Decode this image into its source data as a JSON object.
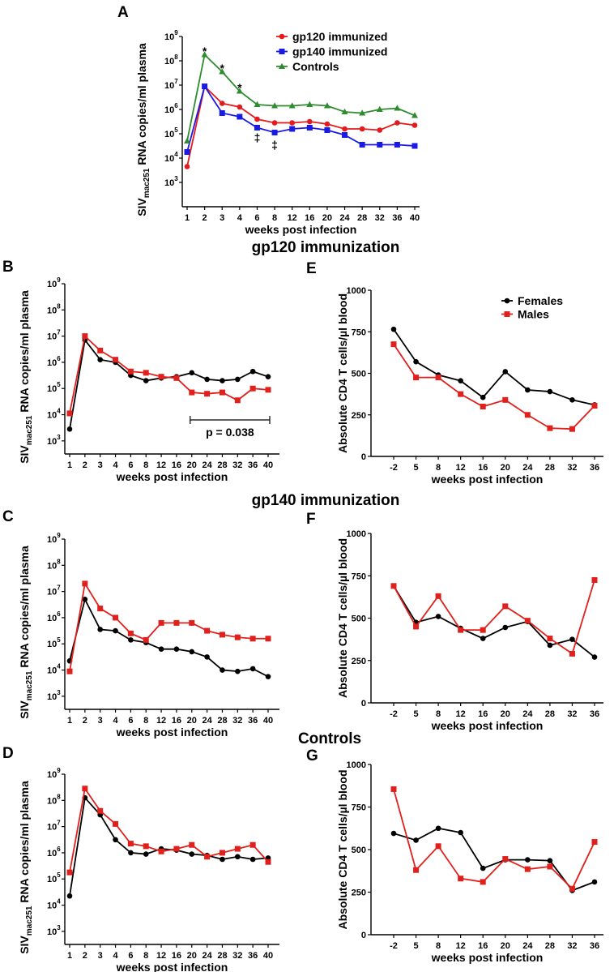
{
  "section_titles": {
    "gp120": "gp120 immunization",
    "gp140": "gp140 immunization",
    "controls": "Controls"
  },
  "y_label_viral": {
    "prefix": "SIV",
    "subscript": "mac251",
    "suffix": " RNA copies/ml plasma"
  },
  "y_label_cd4": "Absolute CD4 T cells/µl blood",
  "x_label": "weeks post infection",
  "colors": {
    "red": "#e41a1c",
    "blue": "#1a1ae6",
    "green": "#2e8b2e",
    "black": "#000000",
    "male_red": "#e0201c"
  },
  "chart_data": [
    {
      "id": "A",
      "type": "line",
      "scale": "log10",
      "x_categories": [
        "1",
        "2",
        "3",
        "4",
        "6",
        "8",
        "12",
        "16",
        "20",
        "24",
        "28",
        "32",
        "36",
        "40"
      ],
      "y_ticks": [
        3,
        4,
        5,
        6,
        7,
        8,
        9
      ],
      "ylim": [
        2,
        9
      ],
      "legend": {
        "position": "top-right",
        "inside": true
      },
      "series": [
        {
          "name": "gp120 immunized",
          "color": "#e41a1c",
          "marker": "circle",
          "values": [
            3.65,
            6.95,
            6.25,
            6.1,
            5.6,
            5.45,
            5.45,
            5.5,
            5.4,
            5.2,
            5.2,
            5.15,
            5.45,
            5.35
          ]
        },
        {
          "name": "gp140 immunized",
          "color": "#1a1ae6",
          "marker": "square",
          "values": [
            4.25,
            6.95,
            5.85,
            5.7,
            5.25,
            5.05,
            5.2,
            5.25,
            5.15,
            4.95,
            4.55,
            4.55,
            4.55,
            4.5
          ]
        },
        {
          "name": "Controls",
          "color": "#2e8b2e",
          "marker": "triangle",
          "values": [
            4.7,
            8.25,
            7.55,
            6.75,
            6.2,
            6.15,
            6.15,
            6.2,
            6.15,
            5.9,
            5.85,
            6.0,
            6.05,
            5.75
          ]
        }
      ],
      "annotations": [
        {
          "text": "*",
          "x_index": 1,
          "y": 8.4
        },
        {
          "text": "*",
          "x_index": 2,
          "y": 7.7
        },
        {
          "text": "*",
          "x_index": 3,
          "y": 6.9
        },
        {
          "text": "‡",
          "x_index": 4,
          "y": 4.85
        },
        {
          "text": "‡",
          "x_index": 5,
          "y": 4.55
        }
      ]
    },
    {
      "id": "B",
      "type": "line",
      "scale": "log10",
      "x_categories": [
        "1",
        "2",
        "3",
        "4",
        "6",
        "8",
        "12",
        "16",
        "20",
        "24",
        "28",
        "32",
        "36",
        "40"
      ],
      "y_ticks": [
        3,
        4,
        5,
        6,
        7,
        8,
        9
      ],
      "ylim": [
        2.5,
        9
      ],
      "series": [
        {
          "name": "Females",
          "color": "#000000",
          "marker": "circle",
          "values": [
            3.45,
            6.85,
            6.1,
            6.0,
            5.5,
            5.3,
            5.4,
            5.45,
            5.6,
            5.35,
            5.3,
            5.35,
            5.65,
            5.45
          ]
        },
        {
          "name": "Males",
          "color": "#e0201c",
          "marker": "square",
          "values": [
            4.05,
            7.0,
            6.45,
            6.1,
            5.65,
            5.6,
            5.45,
            5.4,
            4.85,
            4.8,
            4.85,
            4.55,
            5.0,
            4.95
          ]
        }
      ],
      "bracket": {
        "from_index": 8,
        "to_index": 13,
        "y": 3.8,
        "label": "p = 0.038"
      }
    },
    {
      "id": "C",
      "type": "line",
      "scale": "log10",
      "x_categories": [
        "1",
        "2",
        "3",
        "4",
        "6",
        "8",
        "12",
        "16",
        "20",
        "24",
        "28",
        "32",
        "36",
        "40"
      ],
      "y_ticks": [
        3,
        4,
        5,
        6,
        7,
        8,
        9
      ],
      "ylim": [
        2.5,
        9
      ],
      "series": [
        {
          "name": "Females",
          "color": "#000000",
          "marker": "circle",
          "values": [
            4.35,
            6.7,
            5.55,
            5.5,
            5.15,
            5.05,
            4.8,
            4.8,
            4.7,
            4.5,
            4.0,
            3.95,
            4.05,
            3.75
          ]
        },
        {
          "name": "Males",
          "color": "#e0201c",
          "marker": "square",
          "values": [
            3.95,
            7.3,
            6.35,
            6.0,
            5.4,
            5.15,
            5.8,
            5.8,
            5.8,
            5.5,
            5.35,
            5.25,
            5.2,
            5.2
          ]
        }
      ]
    },
    {
      "id": "D",
      "type": "line",
      "scale": "log10",
      "x_categories": [
        "1",
        "2",
        "3",
        "4",
        "6",
        "8",
        "12",
        "16",
        "20",
        "24",
        "28",
        "32",
        "36",
        "40"
      ],
      "y_ticks": [
        3,
        4,
        5,
        6,
        7,
        8,
        9
      ],
      "ylim": [
        2.5,
        9
      ],
      "series": [
        {
          "name": "Females",
          "color": "#000000",
          "marker": "circle",
          "values": [
            4.35,
            8.1,
            7.45,
            6.5,
            6.0,
            5.95,
            6.15,
            6.1,
            5.95,
            5.9,
            5.75,
            5.85,
            5.75,
            5.8
          ]
        },
        {
          "name": "Males",
          "color": "#e0201c",
          "marker": "square",
          "values": [
            5.25,
            8.45,
            7.6,
            7.1,
            6.35,
            6.25,
            6.05,
            6.15,
            6.3,
            5.85,
            6.0,
            6.15,
            6.3,
            5.65
          ]
        }
      ]
    },
    {
      "id": "E",
      "type": "line",
      "scale": "linear",
      "x_categories": [
        "-2",
        "5",
        "8",
        "12",
        "16",
        "20",
        "24",
        "28",
        "32",
        "36"
      ],
      "y_ticks": [
        0,
        250,
        500,
        750,
        1000
      ],
      "ylim": [
        0,
        1000
      ],
      "legend": {
        "position": "top-right",
        "inside": true
      },
      "series": [
        {
          "name": "Females",
          "color": "#000000",
          "marker": "circle",
          "values": [
            765,
            570,
            490,
            455,
            355,
            510,
            400,
            390,
            340,
            310
          ]
        },
        {
          "name": "Males",
          "color": "#e0201c",
          "marker": "square",
          "values": [
            675,
            475,
            475,
            375,
            300,
            340,
            250,
            170,
            165,
            305
          ]
        }
      ]
    },
    {
      "id": "F",
      "type": "line",
      "scale": "linear",
      "x_categories": [
        "-2",
        "5",
        "8",
        "12",
        "16",
        "20",
        "24",
        "28",
        "32",
        "36"
      ],
      "y_ticks": [
        0,
        250,
        500,
        750,
        1000
      ],
      "ylim": [
        0,
        1000
      ],
      "series": [
        {
          "name": "Females",
          "color": "#000000",
          "marker": "circle",
          "values": [
            690,
            475,
            510,
            440,
            380,
            445,
            480,
            340,
            375,
            270
          ]
        },
        {
          "name": "Males",
          "color": "#e0201c",
          "marker": "square",
          "values": [
            690,
            450,
            630,
            430,
            430,
            570,
            485,
            380,
            290,
            725
          ]
        }
      ]
    },
    {
      "id": "G",
      "type": "line",
      "scale": "linear",
      "x_categories": [
        "-2",
        "5",
        "8",
        "12",
        "16",
        "20",
        "24",
        "28",
        "32",
        "36"
      ],
      "y_ticks": [
        0,
        250,
        500,
        750,
        1000
      ],
      "ylim": [
        0,
        1000
      ],
      "series": [
        {
          "name": "Females",
          "color": "#000000",
          "marker": "circle",
          "values": [
            595,
            555,
            625,
            600,
            390,
            440,
            440,
            435,
            260,
            310
          ]
        },
        {
          "name": "Males",
          "color": "#e0201c",
          "marker": "square",
          "values": [
            855,
            380,
            520,
            330,
            310,
            445,
            385,
            400,
            270,
            545
          ]
        }
      ]
    }
  ]
}
